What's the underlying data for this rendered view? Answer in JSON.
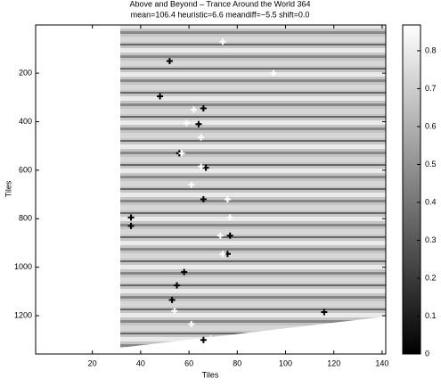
{
  "chart_data": {
    "type": "scatter",
    "title": "Above and Beyond – Trance Around the World 364",
    "subtitle": "mean=106.4 heuristic=6.6 meandiff=−5.5 shift=0.0",
    "x_label": "Tiles",
    "y_label": "Tiles",
    "xlim": [
      -3.5,
      141.5
    ],
    "xticks": [
      20,
      40,
      60,
      80,
      100,
      120,
      140
    ],
    "ylim": [
      1,
      1358
    ],
    "yticks": [
      200,
      400,
      600,
      800,
      1000,
      1200
    ],
    "y_reversed": true,
    "colorbar": {
      "lim": [
        0,
        0.868
      ],
      "ticks": [
        0,
        0.1,
        0.2,
        0.3,
        0.4,
        0.5,
        0.6,
        0.7,
        0.8
      ]
    },
    "series": [
      {
        "color": "#000000",
        "x": [
          52,
          48,
          66,
          64,
          56,
          67,
          66,
          36,
          36,
          77,
          76,
          58,
          55,
          53,
          116,
          66
        ],
        "values": [
          150,
          295,
          345,
          410,
          530,
          590,
          720,
          795,
          830,
          870,
          945,
          1020,
          1075,
          1135,
          1185,
          1300
        ]
      },
      {
        "color": "#ffffff",
        "x": [
          74,
          95,
          62,
          59,
          65,
          57,
          65,
          61,
          76,
          77,
          73,
          74,
          54,
          61,
          69
        ],
        "values": [
          70,
          200,
          350,
          405,
          465,
          530,
          585,
          660,
          720,
          795,
          870,
          945,
          1180,
          1235,
          1295
        ]
      }
    ]
  }
}
